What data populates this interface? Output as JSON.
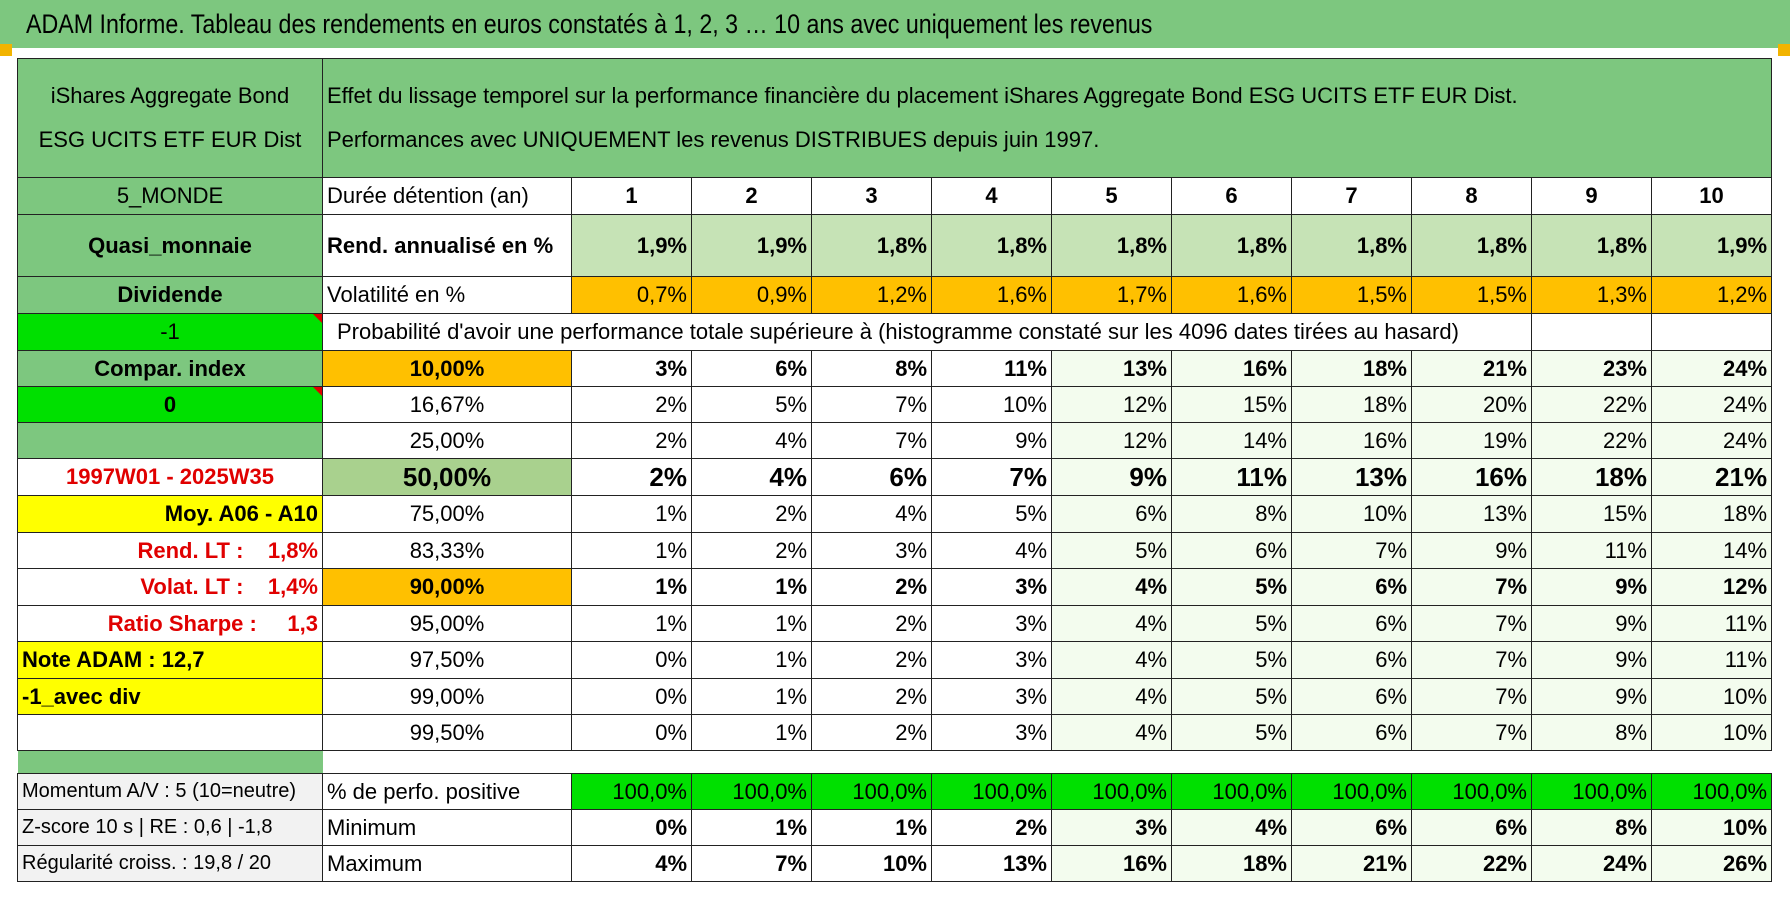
{
  "title": "ADAM Informe. Tableau des rendements en euros constatés à 1, 2, 3 … 10 ans avec uniquement les revenus",
  "colors": {
    "header_green": "#7dc77f",
    "orange": "#ffc000",
    "bright_green": "#00e000",
    "yellow": "#ffff00",
    "light_green": "#c6e3b6",
    "red_text": "#e00000"
  },
  "fund": {
    "name_line1": "iShares Aggregate Bond",
    "name_line2": "ESG UCITS ETF EUR Dist"
  },
  "description": {
    "line1": "Effet du lissage temporel sur la performance financière du placement iShares Aggregate Bond ESG UCITS ETF EUR Dist.",
    "line2": "Performances avec UNIQUEMENT les revenus DISTRIBUES depuis juin 1997."
  },
  "left": {
    "zone": "5_MONDE",
    "category": "Quasi_monnaie",
    "type": "Dividende",
    "flag1": "-1",
    "compar": "Compar. index",
    "flag2": "0",
    "blank": "",
    "period": "1997W01 - 2025W35",
    "moy": "Moy. A06 - A10",
    "rend_lt": "Rend. LT :    1,8%",
    "volat_lt": "Volat. LT :    1,4%",
    "sharpe": "Ratio Sharpe :     1,3",
    "note": "Note ADAM : 12,7",
    "variant": "-1_avec div"
  },
  "labels": {
    "duree": "Durée détention (an)",
    "rend": "Rend. annualisé en %",
    "vol": "Volatilité en %",
    "proba": "Probabilité d'avoir une performance totale supérieure à (histogramme constaté sur les 4096 dates tirées au hasard)"
  },
  "years": [
    "1",
    "2",
    "3",
    "4",
    "5",
    "6",
    "7",
    "8",
    "9",
    "10"
  ],
  "rendement": [
    "1,9%",
    "1,9%",
    "1,8%",
    "1,8%",
    "1,8%",
    "1,8%",
    "1,8%",
    "1,8%",
    "1,8%",
    "1,9%"
  ],
  "volatilite": [
    "0,7%",
    "0,9%",
    "1,2%",
    "1,6%",
    "1,7%",
    "1,6%",
    "1,5%",
    "1,5%",
    "1,3%",
    "1,2%"
  ],
  "prob_rows": [
    {
      "pct": "10,00%",
      "values": [
        "3%",
        "6%",
        "8%",
        "11%",
        "13%",
        "16%",
        "18%",
        "21%",
        "23%",
        "24%"
      ]
    },
    {
      "pct": "16,67%",
      "values": [
        "2%",
        "5%",
        "7%",
        "10%",
        "12%",
        "15%",
        "18%",
        "20%",
        "22%",
        "24%"
      ]
    },
    {
      "pct": "25,00%",
      "values": [
        "2%",
        "4%",
        "7%",
        "9%",
        "12%",
        "14%",
        "16%",
        "19%",
        "22%",
        "24%"
      ]
    },
    {
      "pct": "50,00%",
      "values": [
        "2%",
        "4%",
        "6%",
        "7%",
        "9%",
        "11%",
        "13%",
        "16%",
        "18%",
        "21%"
      ]
    },
    {
      "pct": "75,00%",
      "values": [
        "1%",
        "2%",
        "4%",
        "5%",
        "6%",
        "8%",
        "10%",
        "13%",
        "15%",
        "18%"
      ]
    },
    {
      "pct": "83,33%",
      "values": [
        "1%",
        "2%",
        "3%",
        "4%",
        "5%",
        "6%",
        "7%",
        "9%",
        "11%",
        "14%"
      ]
    },
    {
      "pct": "90,00%",
      "values": [
        "1%",
        "1%",
        "2%",
        "3%",
        "4%",
        "5%",
        "6%",
        "7%",
        "9%",
        "12%"
      ]
    },
    {
      "pct": "95,00%",
      "values": [
        "1%",
        "1%",
        "2%",
        "3%",
        "4%",
        "5%",
        "6%",
        "7%",
        "9%",
        "11%"
      ]
    },
    {
      "pct": "97,50%",
      "values": [
        "0%",
        "1%",
        "2%",
        "3%",
        "4%",
        "5%",
        "6%",
        "7%",
        "9%",
        "11%"
      ]
    },
    {
      "pct": "99,00%",
      "values": [
        "0%",
        "1%",
        "2%",
        "3%",
        "4%",
        "5%",
        "6%",
        "7%",
        "9%",
        "10%"
      ]
    },
    {
      "pct": "99,50%",
      "values": [
        "0%",
        "1%",
        "2%",
        "3%",
        "4%",
        "5%",
        "6%",
        "7%",
        "8%",
        "10%"
      ]
    }
  ],
  "bottom": {
    "momentum": "Momentum A/V : 5 (10=neutre)",
    "zscore": "Z-score 10 s | RE : 0,6 | -1,8",
    "regularite": "Régularité croiss. : 19,8 / 20",
    "pos_label": "% de perfo. positive",
    "min_label": "Minimum",
    "max_label": "Maximum",
    "positive": [
      "100,0%",
      "100,0%",
      "100,0%",
      "100,0%",
      "100,0%",
      "100,0%",
      "100,0%",
      "100,0%",
      "100,0%",
      "100,0%"
    ],
    "minimum": [
      "0%",
      "1%",
      "1%",
      "2%",
      "3%",
      "4%",
      "6%",
      "6%",
      "8%",
      "10%"
    ],
    "maximum": [
      "4%",
      "7%",
      "10%",
      "13%",
      "16%",
      "18%",
      "21%",
      "22%",
      "24%",
      "26%"
    ]
  }
}
